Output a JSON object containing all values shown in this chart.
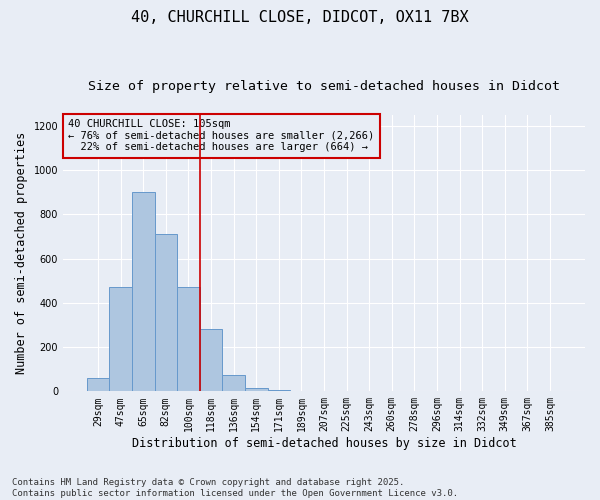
{
  "title_line1": "40, CHURCHILL CLOSE, DIDCOT, OX11 7BX",
  "title_line2": "Size of property relative to semi-detached houses in Didcot",
  "xlabel": "Distribution of semi-detached houses by size in Didcot",
  "ylabel": "Number of semi-detached properties",
  "categories": [
    "29sqm",
    "47sqm",
    "65sqm",
    "82sqm",
    "100sqm",
    "118sqm",
    "136sqm",
    "154sqm",
    "171sqm",
    "189sqm",
    "207sqm",
    "225sqm",
    "243sqm",
    "260sqm",
    "278sqm",
    "296sqm",
    "314sqm",
    "332sqm",
    "349sqm",
    "367sqm",
    "385sqm"
  ],
  "values": [
    60,
    470,
    900,
    710,
    470,
    280,
    75,
    15,
    8,
    0,
    0,
    0,
    0,
    0,
    0,
    0,
    0,
    0,
    0,
    0,
    0
  ],
  "bar_color": "#aec6e0",
  "bar_edge_color": "#6699cc",
  "vline_color": "#cc0000",
  "annotation_box_color": "#cc0000",
  "annotation_line1": "40 CHURCHILL CLOSE: 105sqm",
  "annotation_line2": "← 76% of semi-detached houses are smaller (2,266)",
  "annotation_line3": "  22% of semi-detached houses are larger (664) →",
  "ylim": [
    0,
    1250
  ],
  "yticks": [
    0,
    200,
    400,
    600,
    800,
    1000,
    1200
  ],
  "bg_color": "#e8edf5",
  "grid_color": "#ffffff",
  "footer_text": "Contains HM Land Registry data © Crown copyright and database right 2025.\nContains public sector information licensed under the Open Government Licence v3.0.",
  "title_fontsize": 11,
  "subtitle_fontsize": 9.5,
  "label_fontsize": 8.5,
  "tick_fontsize": 7,
  "ann_fontsize": 7.5,
  "footer_fontsize": 6.5
}
